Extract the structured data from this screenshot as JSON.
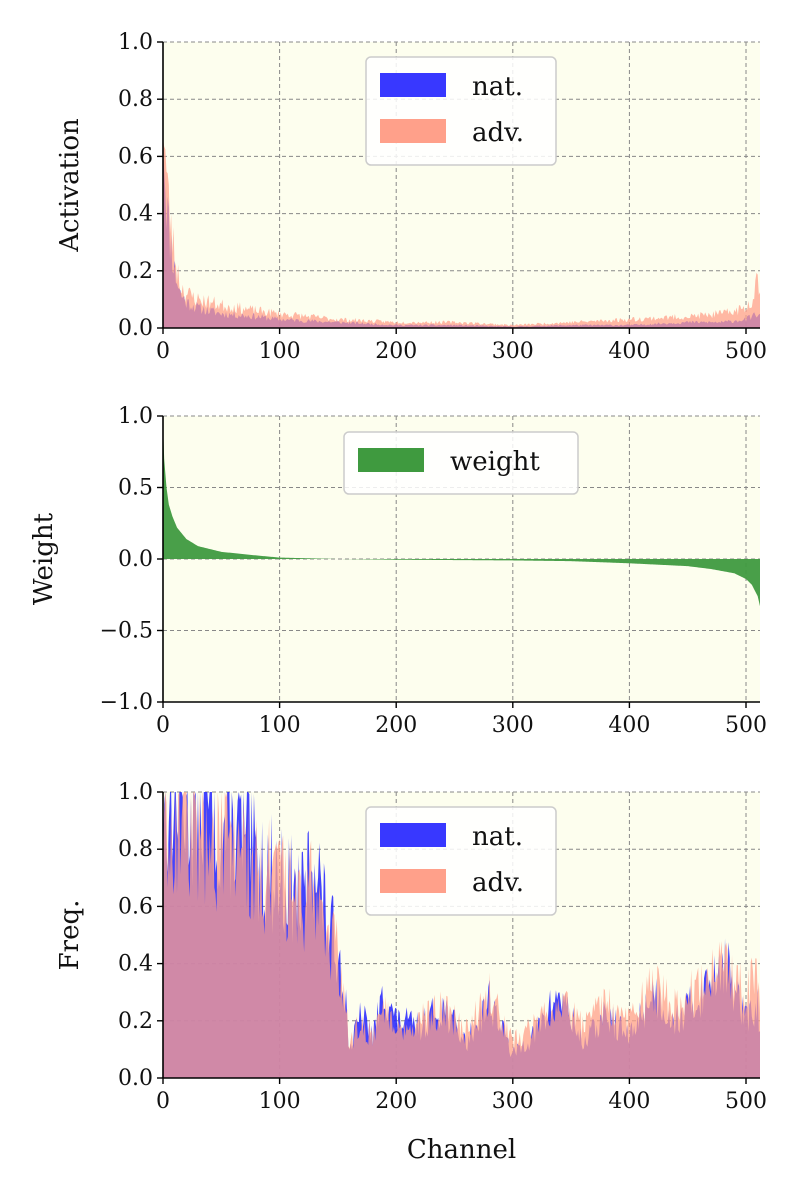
{
  "colors": {
    "plot_bg": "#fdfeee",
    "nat": "#2222ff",
    "adv": "#ffa08a",
    "overlap": "#9a4a8c",
    "weight": "#3f9a3f",
    "grid": "#888888"
  },
  "chart_data": [
    {
      "type": "area",
      "id": "activation",
      "ylabel": "Activation",
      "xlabel": "",
      "xlim": [
        0,
        512
      ],
      "ylim": [
        0,
        1.0
      ],
      "xticks": [
        0,
        100,
        200,
        300,
        400,
        500
      ],
      "xtick_labels": [
        "0",
        "100",
        "200",
        "300",
        "400",
        "500"
      ],
      "yticks": [
        0.0,
        0.2,
        0.4,
        0.6,
        0.8,
        1.0
      ],
      "ytick_labels": [
        "0.0",
        "0.2",
        "0.4",
        "0.6",
        "0.8",
        "1.0"
      ],
      "grid": true,
      "legend": "top-center",
      "legend_entries": [
        "nat.",
        "adv."
      ],
      "series": [
        {
          "name": "nat.",
          "x": [
            0,
            2,
            5,
            10,
            15,
            20,
            30,
            50,
            80,
            100,
            150,
            200,
            250,
            300,
            350,
            400,
            450,
            480,
            500,
            505,
            510,
            512
          ],
          "values": [
            0.75,
            0.52,
            0.35,
            0.2,
            0.12,
            0.09,
            0.07,
            0.05,
            0.04,
            0.03,
            0.02,
            0.01,
            0.01,
            0.005,
            0.01,
            0.01,
            0.02,
            0.02,
            0.03,
            0.04,
            0.05,
            0.04
          ]
        },
        {
          "name": "adv.",
          "x": [
            0,
            2,
            5,
            10,
            15,
            20,
            30,
            50,
            80,
            100,
            150,
            200,
            250,
            300,
            350,
            400,
            450,
            480,
            500,
            505,
            510,
            512
          ],
          "values": [
            0.78,
            0.6,
            0.42,
            0.25,
            0.15,
            0.12,
            0.1,
            0.08,
            0.06,
            0.05,
            0.03,
            0.02,
            0.02,
            0.01,
            0.02,
            0.03,
            0.04,
            0.05,
            0.07,
            0.1,
            0.19,
            0.12
          ]
        }
      ]
    },
    {
      "type": "area",
      "id": "weight",
      "ylabel": "Weight",
      "xlabel": "",
      "xlim": [
        0,
        512
      ],
      "ylim": [
        -1.0,
        1.0
      ],
      "xticks": [
        0,
        100,
        200,
        300,
        400,
        500
      ],
      "xtick_labels": [
        "0",
        "100",
        "200",
        "300",
        "400",
        "500"
      ],
      "yticks": [
        -1.0,
        -0.5,
        0.0,
        0.5,
        1.0
      ],
      "ytick_labels": [
        "−1.0",
        "−0.5",
        "0.0",
        "0.5",
        "1.0"
      ],
      "grid": true,
      "legend": "top-center",
      "legend_entries": [
        "weight"
      ],
      "series": [
        {
          "name": "weight",
          "x": [
            0,
            1,
            3,
            5,
            8,
            12,
            20,
            30,
            50,
            80,
            100,
            150,
            200,
            300,
            350,
            400,
            450,
            470,
            490,
            500,
            505,
            510,
            512
          ],
          "values": [
            0.95,
            0.7,
            0.5,
            0.38,
            0.3,
            0.22,
            0.14,
            0.09,
            0.05,
            0.025,
            0.01,
            0.0,
            -0.005,
            -0.01,
            -0.015,
            -0.03,
            -0.05,
            -0.07,
            -0.1,
            -0.14,
            -0.18,
            -0.26,
            -0.33
          ]
        }
      ]
    },
    {
      "type": "area",
      "id": "frequency",
      "ylabel": "Freq.",
      "xlabel": "Channel",
      "xlim": [
        0,
        512
      ],
      "ylim": [
        0,
        1.0
      ],
      "xticks": [
        0,
        100,
        200,
        300,
        400,
        500
      ],
      "xtick_labels": [
        "0",
        "100",
        "200",
        "300",
        "400",
        "500"
      ],
      "yticks": [
        0.0,
        0.2,
        0.4,
        0.6,
        0.8,
        1.0
      ],
      "ytick_labels": [
        "0.0",
        "0.2",
        "0.4",
        "0.6",
        "0.8",
        "1.0"
      ],
      "grid": true,
      "legend": "top-center",
      "legend_entries": [
        "nat.",
        "adv."
      ],
      "series": [
        {
          "name": "nat.",
          "x": [
            0,
            5,
            10,
            20,
            30,
            40,
            50,
            60,
            80,
            100,
            120,
            130,
            140,
            150,
            155,
            160,
            170,
            180,
            190,
            200,
            220,
            240,
            260,
            280,
            300,
            320,
            340,
            360,
            380,
            400,
            420,
            440,
            460,
            480,
            500,
            510,
            512
          ],
          "values": [
            0.98,
            0.99,
            0.97,
            0.98,
            0.92,
            0.96,
            0.85,
            0.9,
            0.75,
            0.7,
            0.62,
            0.8,
            0.55,
            0.45,
            0.35,
            0.1,
            0.22,
            0.15,
            0.3,
            0.2,
            0.18,
            0.25,
            0.12,
            0.28,
            0.08,
            0.16,
            0.3,
            0.12,
            0.22,
            0.14,
            0.3,
            0.2,
            0.28,
            0.42,
            0.2,
            0.25,
            0.15
          ]
        },
        {
          "name": "adv.",
          "x": [
            0,
            5,
            10,
            20,
            30,
            40,
            50,
            60,
            80,
            100,
            120,
            130,
            140,
            150,
            155,
            160,
            170,
            180,
            190,
            200,
            220,
            240,
            260,
            280,
            300,
            320,
            340,
            360,
            380,
            400,
            420,
            440,
            460,
            480,
            500,
            510,
            512
          ],
          "values": [
            0.9,
            0.92,
            0.9,
            0.88,
            0.86,
            0.84,
            0.8,
            0.82,
            0.72,
            0.68,
            0.6,
            0.7,
            0.52,
            0.42,
            0.3,
            0.12,
            0.2,
            0.14,
            0.26,
            0.18,
            0.2,
            0.24,
            0.16,
            0.3,
            0.12,
            0.2,
            0.28,
            0.18,
            0.26,
            0.2,
            0.32,
            0.24,
            0.32,
            0.38,
            0.3,
            0.36,
            0.25
          ]
        }
      ]
    }
  ]
}
